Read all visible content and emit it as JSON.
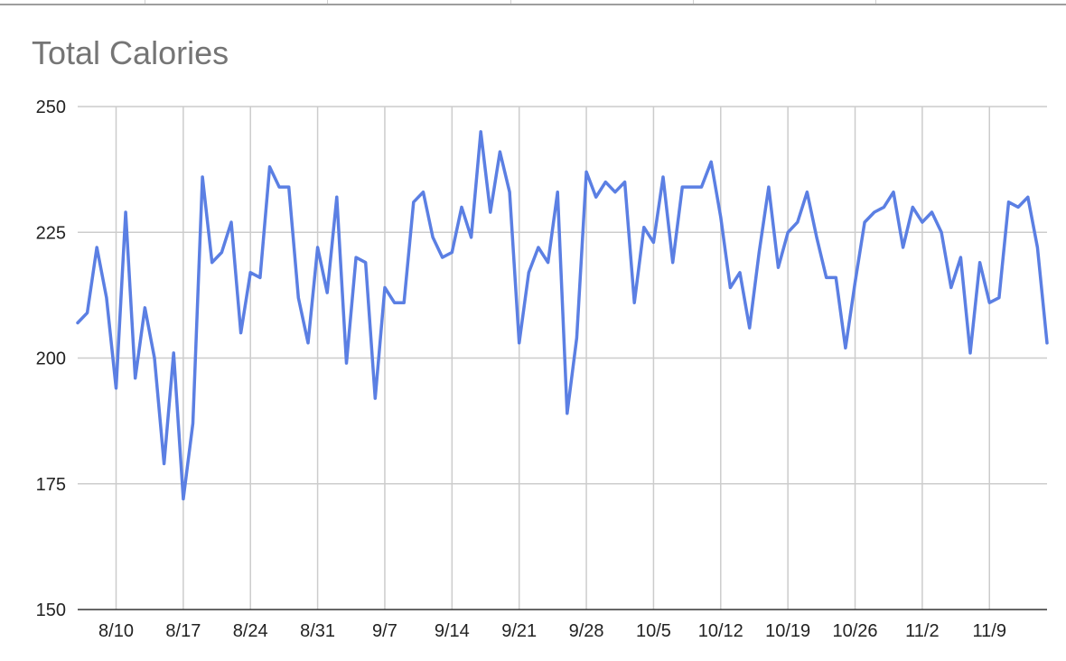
{
  "chart_data": {
    "type": "line",
    "title": "Total Calories",
    "xlabel": "",
    "ylabel": "",
    "ylim": [
      150,
      250
    ],
    "y_ticks": [
      150,
      175,
      200,
      225,
      250
    ],
    "x_tick_labels": [
      "8/10",
      "8/17",
      "8/24",
      "8/31",
      "9/7",
      "9/14",
      "9/21",
      "9/28",
      "10/5",
      "10/12",
      "10/19",
      "10/26",
      "11/2",
      "11/9"
    ],
    "grid": true,
    "legend": "none",
    "colors": {
      "line": "#5b7fe3",
      "grid": "#cccccc"
    },
    "x": [
      "8/6",
      "8/7",
      "8/8",
      "8/9",
      "8/10",
      "8/11",
      "8/12",
      "8/13",
      "8/14",
      "8/15",
      "8/16",
      "8/17",
      "8/18",
      "8/19",
      "8/20",
      "8/21",
      "8/22",
      "8/23",
      "8/24",
      "8/25",
      "8/26",
      "8/27",
      "8/28",
      "8/29",
      "8/30",
      "8/31",
      "9/1",
      "9/2",
      "9/3",
      "9/4",
      "9/5",
      "9/6",
      "9/7",
      "9/8",
      "9/9",
      "9/10",
      "9/11",
      "9/12",
      "9/13",
      "9/14",
      "9/15",
      "9/16",
      "9/17",
      "9/18",
      "9/19",
      "9/20",
      "9/21",
      "9/22",
      "9/23",
      "9/24",
      "9/25",
      "9/26",
      "9/27",
      "9/28",
      "9/29",
      "9/30",
      "10/1",
      "10/2",
      "10/3",
      "10/4",
      "10/5",
      "10/6",
      "10/7",
      "10/8",
      "10/9",
      "10/10",
      "10/11",
      "10/12",
      "10/13",
      "10/14",
      "10/15",
      "10/16",
      "10/17",
      "10/18",
      "10/19",
      "10/20",
      "10/21",
      "10/22",
      "10/23",
      "10/24",
      "10/25",
      "10/26",
      "10/27",
      "10/28",
      "10/29",
      "10/30",
      "10/31",
      "11/1",
      "11/2",
      "11/3",
      "11/4",
      "11/5",
      "11/6",
      "11/7",
      "11/8",
      "11/9",
      "11/10",
      "11/11",
      "11/12",
      "11/13",
      "11/14",
      "11/15"
    ],
    "series": [
      {
        "values": [
          207,
          209,
          222,
          212,
          194,
          229,
          196,
          210,
          200,
          179,
          201,
          172,
          187,
          236,
          219,
          221,
          227,
          205,
          217,
          216,
          238,
          234,
          234,
          212,
          203,
          222,
          213,
          232,
          199,
          220,
          219,
          192,
          214,
          211,
          211,
          231,
          233,
          224,
          220,
          221,
          230,
          224,
          245,
          229,
          241,
          233,
          203,
          217,
          222,
          219,
          233,
          189,
          204,
          237,
          232,
          235,
          233,
          235,
          211,
          226,
          223,
          236,
          219,
          234,
          234,
          234,
          239,
          228,
          214,
          217,
          206,
          221,
          234,
          218,
          225,
          227,
          233,
          224,
          216,
          216,
          202,
          215,
          227,
          229,
          230,
          233,
          222,
          230,
          227,
          229,
          225,
          214,
          220,
          201,
          219,
          211,
          212,
          231,
          230,
          232,
          222,
          203
        ]
      }
    ]
  }
}
